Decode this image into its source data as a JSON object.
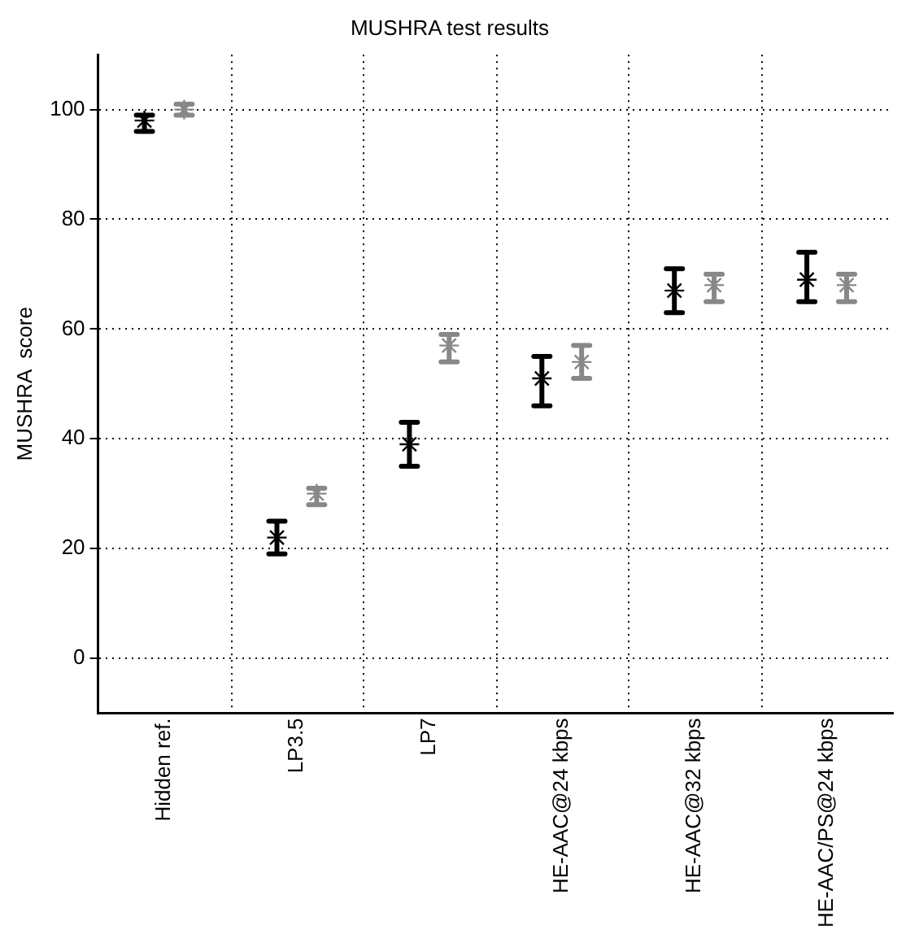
{
  "chart_data": {
    "type": "scatter",
    "title": "MUSHRA test results",
    "ylabel": "MUSHRA  score",
    "categories": [
      "Hidden ref.",
      "LP3.5",
      "LP7",
      "HE-AAC@24 kbps",
      "HE-AAC@32 kbps",
      "HE-AAC/PS@24 kbps"
    ],
    "series": [
      {
        "color": "#000000",
        "values": [
          98,
          22,
          39,
          51,
          67,
          69
        ],
        "errors": [
          [
            96,
            99
          ],
          [
            19,
            25
          ],
          [
            35,
            43
          ],
          [
            46,
            55
          ],
          [
            63,
            71
          ],
          [
            65,
            74
          ]
        ]
      },
      {
        "color": "#888888",
        "values": [
          100,
          30,
          57,
          54,
          68,
          68
        ],
        "errors": [
          [
            99,
            101
          ],
          [
            28,
            31
          ],
          [
            54,
            59
          ],
          [
            51,
            57
          ],
          [
            65,
            70
          ],
          [
            65,
            70
          ]
        ]
      }
    ],
    "ylim": [
      -10,
      110
    ],
    "yticks": [
      0,
      20,
      40,
      60,
      80,
      100
    ],
    "grid": true,
    "marker": "cross",
    "legend": false
  }
}
